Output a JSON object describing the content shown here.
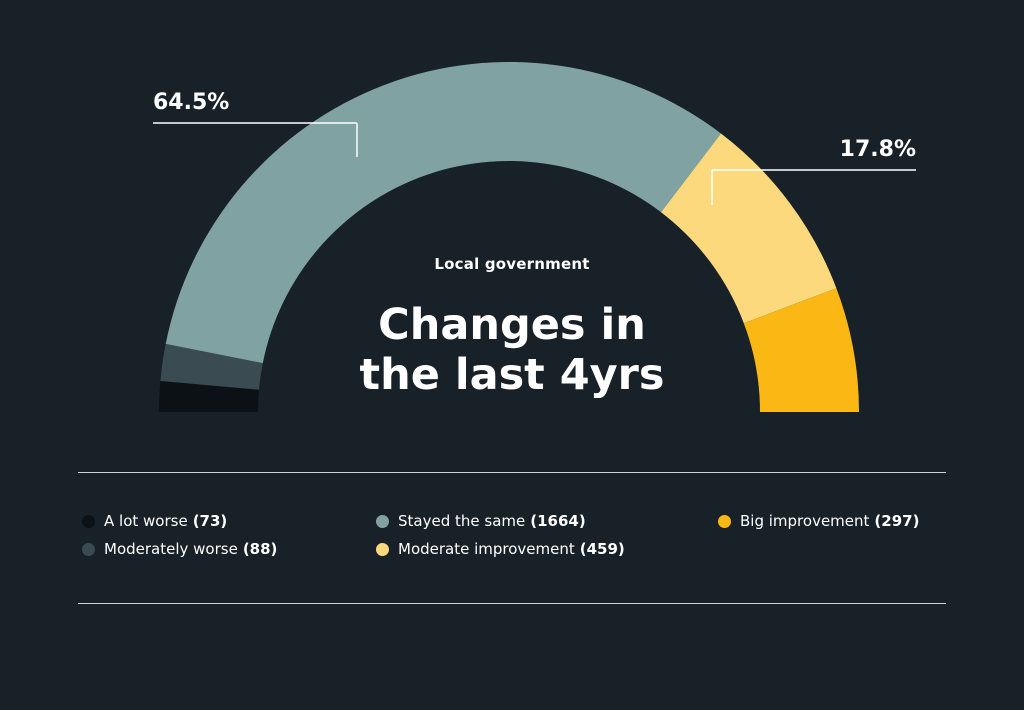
{
  "chart_data": {
    "type": "pie",
    "subtitle": "Local government",
    "title_lines": [
      "Changes in",
      "the last 4yrs"
    ],
    "series": [
      {
        "name": "A lot worse",
        "value": 73,
        "color": "#0c1115"
      },
      {
        "name": "Moderately worse",
        "value": 88,
        "color": "#3a4b52"
      },
      {
        "name": "Stayed the same",
        "value": 1664,
        "color": "#80a2a3"
      },
      {
        "name": "Moderate improvement",
        "value": 459,
        "color": "#fbd97c"
      },
      {
        "name": "Big improvement",
        "value": 297,
        "color": "#fbb713"
      }
    ],
    "callouts": [
      {
        "label": "64.5%",
        "series": "Stayed the same"
      },
      {
        "label": "17.8%",
        "series": "Moderate improvement"
      }
    ],
    "legend_position": "bottom",
    "legend": [
      {
        "name": "A lot worse",
        "count": "(73)"
      },
      {
        "name": "Moderately worse",
        "count": "(88)"
      },
      {
        "name": "Stayed the same",
        "count": "(1664)"
      },
      {
        "name": "Moderate improvement",
        "count": "(459)"
      },
      {
        "name": "Big improvement",
        "count": "(297)"
      }
    ]
  }
}
